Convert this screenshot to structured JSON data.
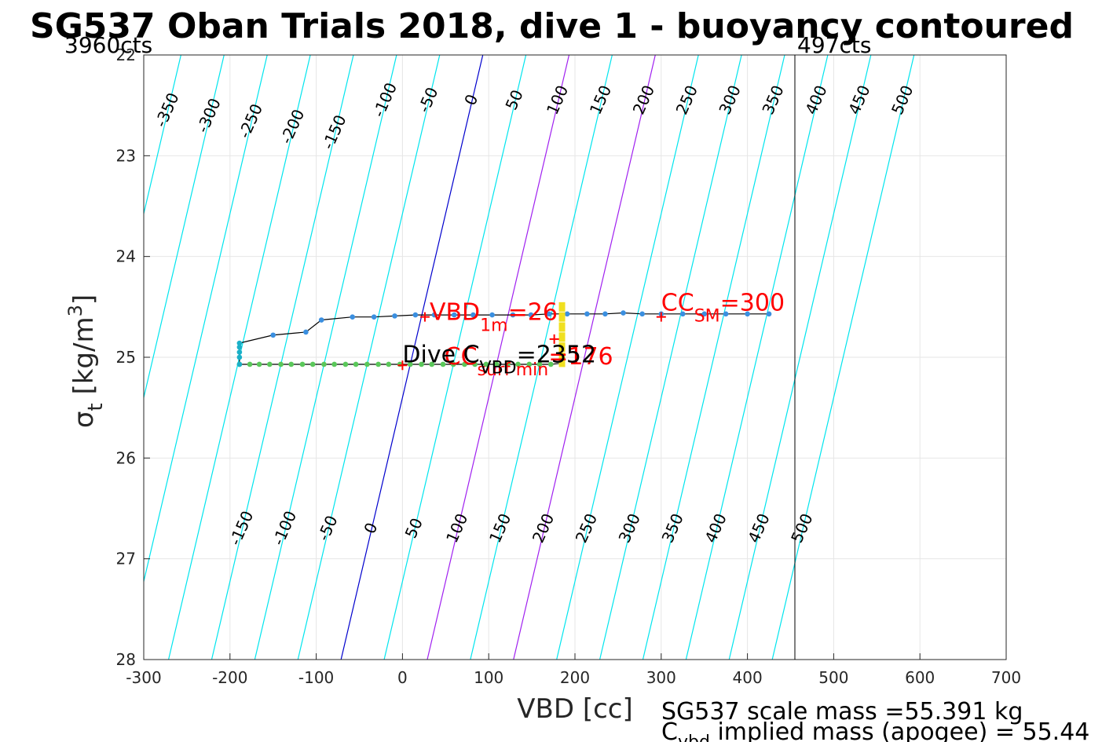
{
  "chart_data": {
    "type": "line",
    "title": "SG537 Oban Trials 2018, dive 1 - buoyancy contoured",
    "xlabel": "VBD [cc]",
    "ylabel": "σ",
    "ylabel_sub": "t",
    "ylabel_unit": "[kg/m",
    "ylabel_unit_sup": "3",
    "ylabel_unit_close": "]",
    "xlim": [
      -300,
      700
    ],
    "ylim": [
      22,
      28
    ],
    "y_reversed": true,
    "grid": true,
    "xticks": [
      -300,
      -200,
      -100,
      0,
      100,
      200,
      300,
      400,
      500,
      600,
      700
    ],
    "yticks": [
      22,
      23,
      24,
      25,
      26,
      27,
      28
    ],
    "top_left_label": "3960cts",
    "top_right_label": "497cts",
    "vertical_line_x": 455,
    "contour_levels": [
      -350,
      -300,
      -250,
      -200,
      -150,
      -100,
      -50,
      0,
      50,
      100,
      150,
      200,
      250,
      300,
      350,
      400,
      450,
      500
    ],
    "contour_slope_cc_per_sigma": 27.4,
    "contour_colors": {
      "default": "#00e5ee",
      "zero": "#0000cd",
      "highlight": "#a020f0"
    },
    "highlight_levels": [
      100,
      200
    ],
    "dive_points": [
      [
        -189,
        25.07
      ],
      [
        -177,
        25.07
      ],
      [
        -166,
        25.07
      ],
      [
        -154,
        25.07
      ],
      [
        -141,
        25.07
      ],
      [
        -129,
        25.07
      ],
      [
        -116,
        25.07
      ],
      [
        -104,
        25.07
      ],
      [
        -91,
        25.07
      ],
      [
        -79,
        25.07
      ],
      [
        -66,
        25.07
      ],
      [
        -54,
        25.07
      ],
      [
        -41,
        25.07
      ],
      [
        -28,
        25.07
      ],
      [
        -16,
        25.07
      ],
      [
        -3,
        25.07
      ],
      [
        9,
        25.07
      ],
      [
        22,
        25.07
      ],
      [
        34,
        25.07
      ],
      [
        47,
        25.07
      ],
      [
        59,
        25.07
      ],
      [
        72,
        25.07
      ],
      [
        84,
        25.07
      ],
      [
        97,
        25.07
      ],
      [
        109,
        25.07
      ],
      [
        122,
        25.07
      ],
      [
        134,
        25.07
      ],
      [
        147,
        25.07
      ],
      [
        159,
        25.07
      ],
      [
        172,
        25.07
      ],
      [
        184,
        25.06
      ]
    ],
    "climb_points": [
      [
        -189,
        25.07
      ],
      [
        -189,
        25.0
      ],
      [
        -189,
        24.95
      ],
      [
        -189,
        24.9
      ],
      [
        -189,
        24.86
      ],
      [
        -150,
        24.78
      ],
      [
        -112,
        24.75
      ],
      [
        -94,
        24.63
      ],
      [
        -58,
        24.6
      ],
      [
        -33,
        24.6
      ],
      [
        -9,
        24.59
      ],
      [
        15,
        24.58
      ],
      [
        37,
        24.58
      ],
      [
        60,
        24.58
      ],
      [
        82,
        24.58
      ],
      [
        104,
        24.58
      ],
      [
        128,
        24.58
      ],
      [
        149,
        24.58
      ],
      [
        170,
        24.57
      ],
      [
        191,
        24.57
      ],
      [
        214,
        24.57
      ],
      [
        235,
        24.57
      ],
      [
        256,
        24.56
      ],
      [
        278,
        24.57
      ],
      [
        300,
        24.57
      ],
      [
        325,
        24.57
      ],
      [
        350,
        24.57
      ],
      [
        375,
        24.57
      ],
      [
        400,
        24.57
      ],
      [
        425,
        24.57
      ]
    ],
    "yellow_points": [
      [
        185,
        24.5
      ],
      [
        185,
        24.6
      ],
      [
        185,
        24.7
      ],
      [
        185,
        24.8
      ],
      [
        185,
        24.9
      ],
      [
        185,
        25.0
      ],
      [
        185,
        25.05
      ]
    ],
    "markers": [
      {
        "x": 26,
        "y": 24.6,
        "label": "VBD",
        "sub": "1m",
        "value": "=26",
        "color": "#ff0000"
      },
      {
        "x": 300,
        "y": 24.6,
        "label": "CC",
        "sub": "SM",
        "value": "=300",
        "color": "#ff0000"
      },
      {
        "x": 176,
        "y": 24.82,
        "label": "CC",
        "sub": "surf min",
        "value": "=176",
        "color": "#ff0000"
      },
      {
        "x": 0,
        "y": 25.08,
        "label": "Dive C",
        "sub": "VBD",
        "value": "=2352",
        "color": "#000000"
      }
    ],
    "footer_line1": "SG537 scale mass =55.391 kg",
    "footer_line2_prefix": "C",
    "footer_line2_sub": "vbd",
    "footer_line2_rest": " implied mass (apogee) = 55.44"
  }
}
